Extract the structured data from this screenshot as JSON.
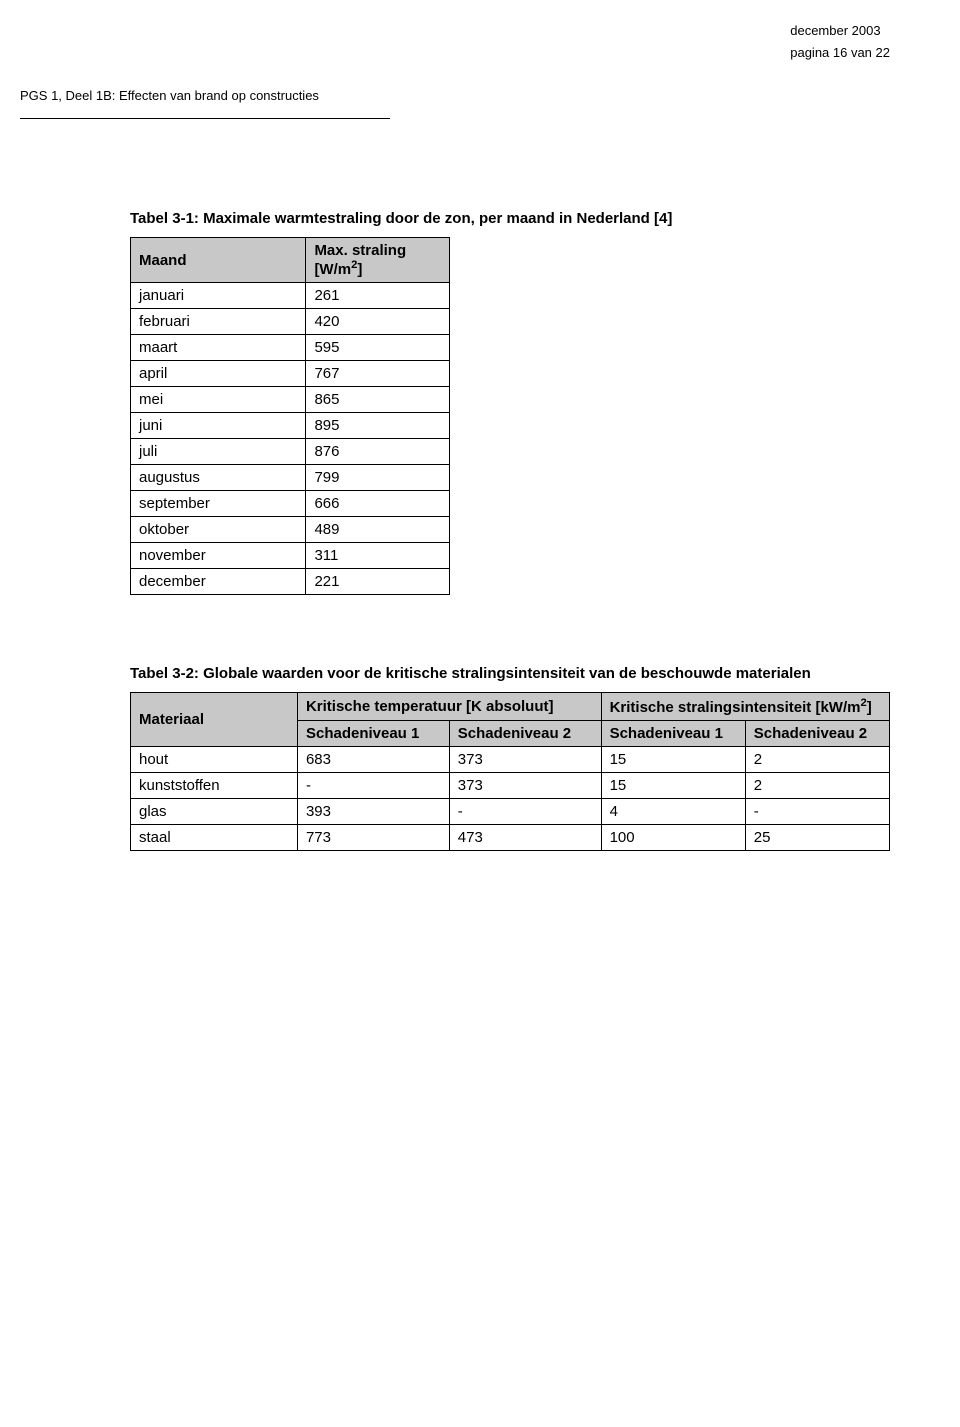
{
  "header": {
    "date": "december 2003",
    "page_info": "pagina 16 van 22",
    "doc_title": "PGS 1, Deel 1B: Effecten van brand op constructies"
  },
  "table1": {
    "caption": "Tabel 3-1: Maximale warmtestraling door de zon, per maand in Nederland [4]",
    "col_month": "Maand",
    "col_value_prefix": "Max. straling [W/m",
    "col_value_suffix": "]",
    "rows": [
      {
        "month": "januari",
        "value": "261"
      },
      {
        "month": "februari",
        "value": "420"
      },
      {
        "month": "maart",
        "value": "595"
      },
      {
        "month": "april",
        "value": "767"
      },
      {
        "month": "mei",
        "value": "865"
      },
      {
        "month": "juni",
        "value": "895"
      },
      {
        "month": "juli",
        "value": "876"
      },
      {
        "month": "augustus",
        "value": "799"
      },
      {
        "month": "september",
        "value": "666"
      },
      {
        "month": "oktober",
        "value": "489"
      },
      {
        "month": "november",
        "value": "311"
      },
      {
        "month": "december",
        "value": "221"
      }
    ]
  },
  "table2": {
    "caption": "Tabel 3-2: Globale waarden voor de kritische stralingsintensiteit van de beschouwde materialen",
    "col_material": "Materiaal",
    "col_ktemp": "Kritische temperatuur [K absoluut]",
    "col_kstr_prefix": "Kritische stralingsintensiteit [kW/m",
    "col_kstr_suffix": "]",
    "sub_s1": "Schadeniveau 1",
    "sub_s2": "Schadeniveau 2",
    "rows": [
      {
        "material": "hout",
        "t1": "683",
        "t2": "373",
        "s1": "15",
        "s2": "2"
      },
      {
        "material": "kunststoffen",
        "t1": "-",
        "t2": "373",
        "s1": "15",
        "s2": "2"
      },
      {
        "material": "glas",
        "t1": "393",
        "t2": "-",
        "s1": "4",
        "s2": "-"
      },
      {
        "material": "staal",
        "t1": "773",
        "t2": "473",
        "s1": "100",
        "s2": "25"
      }
    ]
  }
}
